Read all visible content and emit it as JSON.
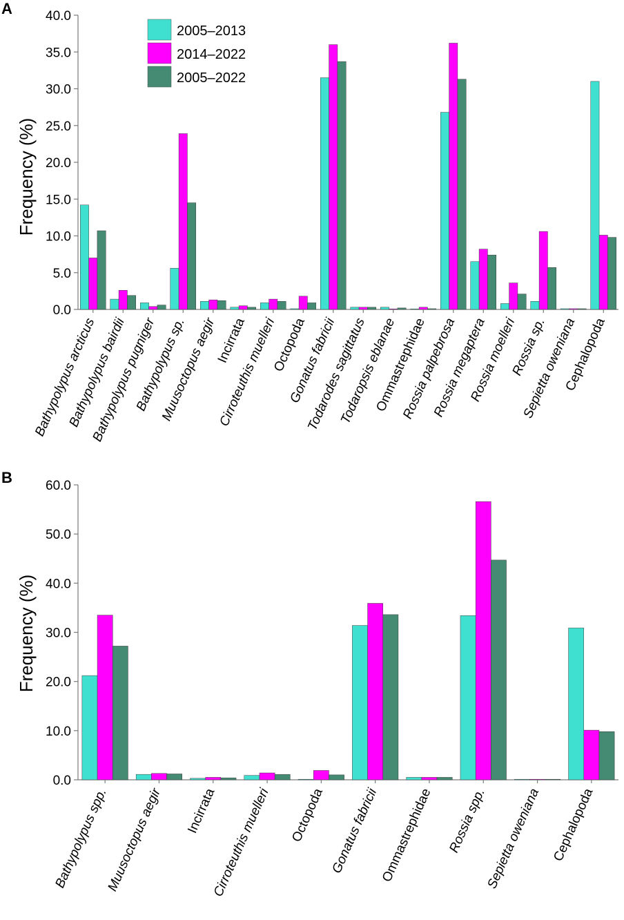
{
  "legend": [
    "2005–2013",
    "2014–2022",
    "2005–2022"
  ],
  "colors": [
    "#40e0d0",
    "#ff00ff",
    "#458b74"
  ],
  "chart_data": [
    {
      "type": "bar",
      "panel": "A",
      "ylabel": "Frequency (%)",
      "ylim": [
        0,
        40
      ],
      "yticks": [
        "0.0",
        "5.0",
        "10.0",
        "15.0",
        "20.0",
        "25.0",
        "30.0",
        "35.0",
        "40.0"
      ],
      "categories": [
        "Bathypolypus arcticus",
        "Bathypolypus bairdii",
        "Bathypolypus pugniger",
        "Bathypolypus sp.",
        "Muusoctopus aegir",
        "Incirrata",
        "Cirroteuthis muelleri",
        "Octopoda",
        "Gonatus fabricii",
        "Todarodes sagittatus",
        "Todaropsis eblanae",
        "Ommastrephidae",
        "Rossia palpebrosa",
        "Rossia megaptera",
        "Rossia moelleri",
        "Rossia sp.",
        "Sepietta oweniana",
        "Cephalopoda"
      ],
      "series": [
        {
          "name": "2005–2013",
          "values": [
            14.2,
            1.4,
            0.9,
            5.6,
            1.1,
            0.3,
            0.9,
            0.1,
            31.5,
            0.3,
            0.3,
            0.0,
            26.8,
            6.5,
            0.8,
            1.1,
            0.1,
            31.0
          ]
        },
        {
          "name": "2014–2022",
          "values": [
            7.0,
            2.6,
            0.4,
            23.9,
            1.3,
            0.5,
            1.4,
            1.8,
            36.0,
            0.3,
            0.0,
            0.3,
            36.2,
            8.2,
            3.6,
            10.6,
            0.1,
            10.1
          ]
        },
        {
          "name": "2005–2022",
          "values": [
            10.7,
            1.9,
            0.6,
            14.5,
            1.2,
            0.3,
            1.1,
            0.9,
            33.7,
            0.3,
            0.2,
            0.1,
            31.3,
            7.4,
            2.1,
            5.7,
            0.1,
            9.8
          ]
        }
      ]
    },
    {
      "type": "bar",
      "panel": "B",
      "ylabel": "Frequency (%)",
      "ylim": [
        0,
        60
      ],
      "yticks": [
        "0.0",
        "10.0",
        "20.0",
        "30.0",
        "40.0",
        "50.0",
        "60.0"
      ],
      "categories": [
        "Bathypolypus spp.",
        "Muusoctopus aegir",
        "Incirrata",
        "Cirroteuthis muelleri",
        "Octopoda",
        "Gonatus fabricii",
        "Ommastrephidae",
        "Rossia spp.",
        "Sepietta oweniana",
        "Cephalopoda"
      ],
      "series": [
        {
          "name": "2005–2013",
          "values": [
            21.2,
            1.1,
            0.3,
            0.9,
            0.1,
            31.4,
            0.5,
            33.4,
            0.1,
            30.9
          ]
        },
        {
          "name": "2014–2022",
          "values": [
            33.5,
            1.3,
            0.5,
            1.4,
            1.9,
            35.9,
            0.5,
            56.6,
            0.1,
            10.1
          ]
        },
        {
          "name": "2005–2022",
          "values": [
            27.2,
            1.2,
            0.4,
            1.1,
            1.0,
            33.6,
            0.5,
            44.7,
            0.1,
            9.8
          ]
        }
      ]
    }
  ]
}
